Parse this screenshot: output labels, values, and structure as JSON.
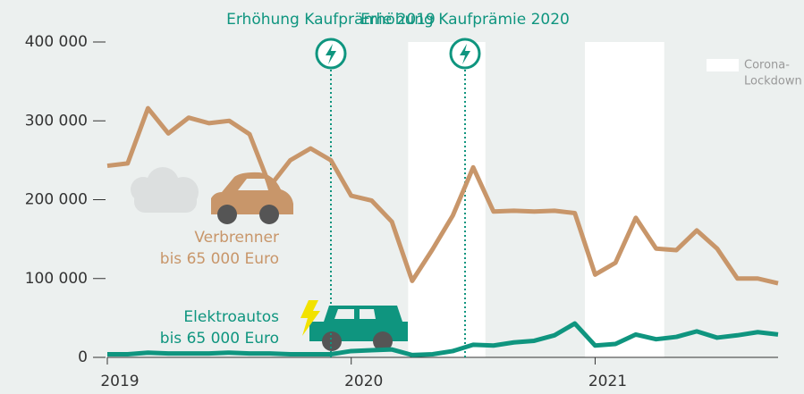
{
  "chart_data": {
    "type": "line",
    "categories": [
      "2019",
      null,
      null,
      null,
      null,
      null,
      null,
      null,
      null,
      null,
      null,
      null,
      "2020",
      null,
      null,
      null,
      null,
      null,
      null,
      null,
      null,
      null,
      null,
      null,
      "2021",
      null,
      null,
      null,
      null,
      null,
      null,
      null,
      null,
      null
    ],
    "series": [
      {
        "name_lines": [
          "Verbrenner",
          "bis 65 000 Euro"
        ],
        "color": "#c8966a",
        "values": [
          243000,
          246000,
          316000,
          284000,
          304000,
          297000,
          300000,
          283000,
          217000,
          250000,
          265000,
          250000,
          205000,
          199000,
          172000,
          97000,
          137000,
          180000,
          241000,
          185000,
          186000,
          185000,
          186000,
          183000,
          105000,
          120000,
          177000,
          138000,
          136000,
          161000,
          138000,
          100000,
          100000,
          94000
        ]
      },
      {
        "name_lines": [
          "Elektroautos",
          "bis 65 000 Euro"
        ],
        "color": "#0f957f",
        "values": [
          4000,
          4000,
          6000,
          5000,
          5000,
          5000,
          6000,
          5000,
          5000,
          4000,
          4000,
          4000,
          8000,
          9000,
          10000,
          3000,
          4000,
          8000,
          16000,
          15000,
          19000,
          21000,
          28000,
          43000,
          15000,
          17000,
          29000,
          23000,
          26000,
          33000,
          25000,
          28000,
          32000,
          29000
        ]
      }
    ],
    "ylim": [
      0,
      400000
    ],
    "yticks": [
      0,
      {
        "value": 100000,
        "label": "100 000"
      },
      {
        "value": 200000,
        "label": "200 000"
      },
      {
        "value": 300000,
        "label": "300 000"
      },
      {
        "value": 400000,
        "label": "400 000"
      }
    ],
    "annotations": [
      {
        "text": "Erhöhung Kaufprämie 2019",
        "at": 11
      },
      {
        "text": "Erhöhung Kaufprämie 2020",
        "at": 17.6
      }
    ],
    "bands": [
      {
        "from": 14.8,
        "to": 18.6
      },
      {
        "from": 23.5,
        "to": 27.4
      }
    ],
    "band_legend": [
      "Corona-",
      "Lockdown"
    ]
  }
}
